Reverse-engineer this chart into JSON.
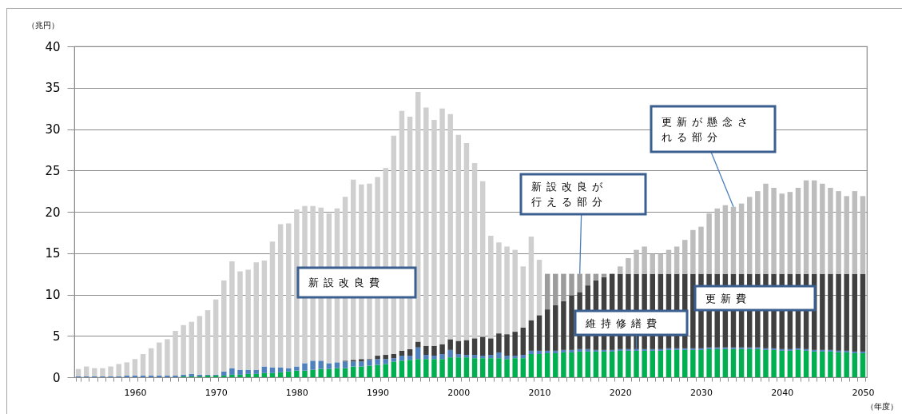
{
  "chart_data": {
    "type": "bar",
    "stacked": true,
    "ylabel": "（兆円）",
    "xlabel": "（年度）",
    "categories": [
      null,
      null,
      null,
      null,
      null,
      null,
      null,
      "1960",
      null,
      null,
      null,
      null,
      null,
      null,
      null,
      null,
      null,
      "1970",
      null,
      null,
      null,
      null,
      null,
      null,
      null,
      null,
      null,
      "1980",
      null,
      null,
      null,
      null,
      null,
      null,
      null,
      null,
      null,
      "1990",
      null,
      null,
      null,
      null,
      null,
      null,
      null,
      null,
      null,
      "2000",
      null,
      null,
      null,
      null,
      null,
      null,
      null,
      null,
      null,
      "2010",
      null,
      null,
      null,
      null,
      null,
      null,
      null,
      null,
      null,
      "2020",
      null,
      null,
      null,
      null,
      null,
      null,
      null,
      null,
      null,
      "2030",
      null,
      null,
      null,
      null,
      null,
      null,
      null,
      null,
      null,
      "2040",
      null,
      null,
      null,
      null,
      null,
      null,
      null,
      null,
      null,
      "2050"
    ],
    "ylim": [
      0,
      40
    ],
    "yticks": [
      0,
      5,
      10,
      15,
      20,
      25,
      30,
      35,
      40
    ],
    "grid": "y",
    "series": [
      {
        "name": "維持修繕費",
        "color": "#00b050",
        "values": [
          null,
          null,
          null,
          null,
          null,
          null,
          null,
          null,
          null,
          null,
          null,
          null,
          null,
          0.1,
          0.1,
          0.1,
          0.2,
          0.2,
          0.2,
          0.3,
          0.3,
          0.4,
          0.4,
          0.5,
          0.5,
          0.6,
          0.7,
          0.8,
          0.8,
          0.9,
          1.0,
          1.0,
          1.1,
          1.1,
          1.3,
          1.3,
          1.4,
          1.5,
          1.6,
          1.9,
          2.0,
          2.1,
          2.2,
          2.2,
          2.2,
          2.2,
          2.4,
          2.4,
          2.4,
          2.3,
          2.3,
          2.3,
          2.3,
          2.2,
          2.3,
          2.3,
          2.8,
          2.8,
          2.9,
          2.9,
          3.0,
          3.0,
          3.1,
          3.1,
          3.1,
          3.1,
          3.1,
          3.2,
          3.2,
          3.2,
          3.2,
          3.2,
          3.2,
          3.3,
          3.3,
          3.3,
          3.3,
          3.3,
          3.4,
          3.4,
          3.4,
          3.4,
          3.4,
          3.4,
          3.4,
          3.3,
          3.3,
          3.2,
          3.2,
          3.3,
          3.2,
          3.1,
          3.1,
          3.1,
          3.0,
          3.0,
          2.9,
          2.9
        ]
      },
      {
        "color": "#4f81bd",
        "values": [
          0.1,
          0.1,
          0.1,
          0.1,
          0.1,
          0.1,
          0.2,
          0.2,
          0.2,
          0.2,
          0.2,
          0.2,
          0.2,
          0.2,
          0.3,
          0.2,
          0.1,
          0.1,
          0.5,
          0.8,
          0.6,
          0.5,
          0.5,
          0.8,
          0.7,
          0.6,
          0.4,
          0.5,
          0.9,
          1.1,
          1.0,
          0.7,
          0.7,
          0.8,
          0.6,
          0.6,
          0.7,
          0.7,
          0.6,
          0.4,
          0.6,
          0.5,
          1.4,
          0.5,
          0.4,
          0.6,
          0.9,
          0.4,
          0.3,
          0.4,
          0.3,
          0.4,
          0.7,
          0.4,
          0.3,
          0.4,
          0.4,
          0.4,
          0.3,
          0.3,
          0.3,
          0.3,
          0.3,
          0.3,
          0.2,
          0.2,
          0.2,
          0.2,
          0.2,
          0.2,
          0.2,
          0.2,
          0.2,
          0.2,
          0.2,
          0.2,
          0.2,
          0.2,
          0.2,
          0.2,
          0.2,
          0.2,
          0.2,
          0.2,
          0.2,
          0.2,
          0.2,
          0.2,
          0.2,
          0.2,
          0.2,
          0.2,
          0.2,
          0.2,
          0.2,
          0.2,
          0.2,
          0.2
        ]
      },
      {
        "name": "更新費",
        "color": "#404040",
        "values": [
          null,
          null,
          null,
          null,
          null,
          null,
          null,
          null,
          null,
          null,
          null,
          null,
          null,
          null,
          null,
          null,
          null,
          null,
          null,
          null,
          null,
          null,
          null,
          null,
          null,
          null,
          null,
          null,
          null,
          null,
          null,
          null,
          null,
          0.1,
          0.2,
          0.3,
          0.1,
          0.4,
          0.5,
          0.5,
          0.6,
          0.8,
          0.7,
          1.1,
          1.2,
          1.2,
          1.3,
          1.6,
          1.8,
          2.0,
          2.3,
          2.0,
          2.3,
          2.6,
          2.9,
          3.3,
          3.7,
          4.3,
          5.0,
          5.5,
          5.9,
          6.6,
          6.9,
          7.7,
          8.4,
          8.8,
          9.2,
          9.1,
          9.1,
          9.1,
          9.1,
          9.1,
          9.1,
          9.0,
          9.0,
          9.0,
          9.0,
          9.0,
          8.9,
          8.9,
          8.9,
          8.9,
          8.9,
          8.9,
          8.9,
          9.0,
          9.0,
          9.1,
          9.1,
          9.0,
          9.1,
          9.2,
          9.2,
          9.2,
          9.3,
          9.3,
          9.4,
          9.4
        ]
      },
      {
        "name": "新設改良費",
        "color": "#cfcfcf",
        "values": [
          0.9,
          1.2,
          1.0,
          1.0,
          1.2,
          1.5,
          1.6,
          2.0,
          2.6,
          3.3,
          4.0,
          4.4,
          5.4,
          6.0,
          6.3,
          7.1,
          7.8,
          9.1,
          11.0,
          12.9,
          11.9,
          12.1,
          13.0,
          12.8,
          15.2,
          17.3,
          17.5,
          19.0,
          19.0,
          18.7,
          18.5,
          18.1,
          18.6,
          19.8,
          21.8,
          21.1,
          21.2,
          21.6,
          22.6,
          26.4,
          29.0,
          28.1,
          30.2,
          28.8,
          27.3,
          28.5,
          27.2,
          24.9,
          23.8,
          21.2,
          18.8,
          12.4,
          11.0,
          10.6,
          9.9,
          7.4,
          10.1,
          6.7,
          null,
          null,
          null,
          null,
          null,
          null,
          null,
          null,
          null,
          null,
          null,
          null,
          null,
          null,
          null,
          null,
          null,
          null,
          null,
          null,
          null,
          null,
          null,
          null,
          null,
          null,
          null,
          null,
          null,
          null,
          null,
          null,
          null,
          null,
          null,
          null,
          null,
          null,
          null,
          null
        ]
      },
      {
        "name": "新設改良が行える部分",
        "color": "#9c9c9c",
        "values": [
          null,
          null,
          null,
          null,
          null,
          null,
          null,
          null,
          null,
          null,
          null,
          null,
          null,
          null,
          null,
          null,
          null,
          null,
          null,
          null,
          null,
          null,
          null,
          null,
          null,
          null,
          null,
          null,
          null,
          null,
          null,
          null,
          null,
          null,
          null,
          null,
          null,
          null,
          null,
          null,
          null,
          null,
          null,
          null,
          null,
          null,
          null,
          null,
          null,
          null,
          null,
          null,
          null,
          null,
          null,
          null,
          null,
          null,
          4.3,
          3.8,
          3.3,
          2.6,
          2.2,
          1.4,
          0.8,
          0.4,
          null,
          null,
          null,
          null,
          null,
          null,
          null,
          null,
          null,
          null,
          null,
          null,
          null,
          null,
          null,
          null,
          null,
          null,
          null,
          null,
          null,
          null,
          null,
          null,
          null,
          null,
          null,
          null,
          null,
          null,
          null,
          null
        ]
      },
      {
        "name": "更新が懸念される部分",
        "color": "#bdbdbd",
        "values": [
          null,
          null,
          null,
          null,
          null,
          null,
          null,
          null,
          null,
          null,
          null,
          null,
          null,
          null,
          null,
          null,
          null,
          null,
          null,
          null,
          null,
          null,
          null,
          null,
          null,
          null,
          null,
          null,
          null,
          null,
          null,
          null,
          null,
          null,
          null,
          null,
          null,
          null,
          null,
          null,
          null,
          null,
          null,
          null,
          null,
          null,
          null,
          null,
          null,
          null,
          null,
          null,
          null,
          null,
          null,
          null,
          null,
          null,
          null,
          null,
          null,
          null,
          null,
          null,
          null,
          null,
          null,
          0.9,
          1.9,
          2.9,
          3.3,
          2.4,
          2.4,
          2.9,
          3.3,
          4.1,
          5.3,
          5.7,
          7.3,
          7.9,
          8.3,
          8.1,
          8.5,
          9.3,
          10.0,
          10.9,
          10.4,
          9.7,
          9.9,
          10.4,
          11.3,
          11.3,
          10.9,
          10.4,
          10.0,
          9.4,
          10.0,
          9.4
        ]
      }
    ]
  }
}
